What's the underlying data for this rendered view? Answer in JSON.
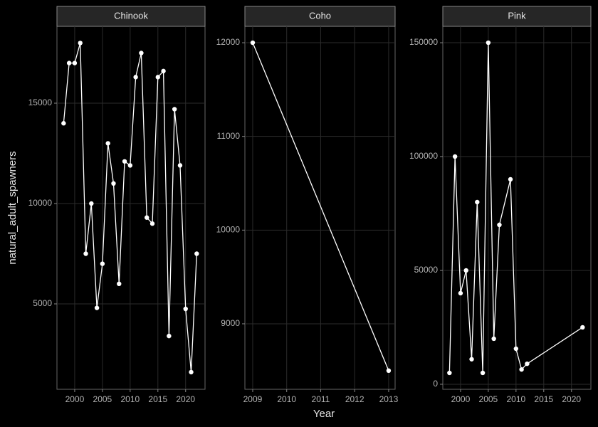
{
  "x_label": "Year",
  "y_label": "natural_adult_spawners",
  "chart_data": [
    {
      "type": "line",
      "title": "Chinook",
      "color": "#ffffff",
      "x": [
        1998,
        1999,
        2000,
        2001,
        2002,
        2003,
        2004,
        2005,
        2006,
        2007,
        2008,
        2009,
        2010,
        2011,
        2012,
        2013,
        2014,
        2015,
        2016,
        2017,
        2018,
        2019,
        2020,
        2021,
        2022
      ],
      "values": [
        14000,
        17000,
        17000,
        18000,
        7500,
        10000,
        4800,
        7000,
        13000,
        11000,
        6000,
        12100,
        11900,
        16300,
        17500,
        9300,
        9000,
        16300,
        16600,
        3400,
        14700,
        11900,
        4750,
        1600,
        7500
      ],
      "xlim": [
        1996.8,
        2023.5
      ],
      "xticks": [
        2000,
        2005,
        2010,
        2015,
        2020
      ],
      "ylim": [
        745,
        18830
      ],
      "yticks": [
        5000,
        10000,
        15000
      ],
      "grid": true
    },
    {
      "type": "line",
      "title": "Coho",
      "color": "#ffffff",
      "x": [
        2009,
        2013
      ],
      "values": [
        12000,
        8500
      ],
      "xlim": [
        2008.77,
        2013.19
      ],
      "xticks": [
        2009,
        2010,
        2011,
        2012,
        2013
      ],
      "ylim": [
        8301,
        12175
      ],
      "yticks": [
        9000,
        10000,
        11000,
        12000
      ],
      "grid": true
    },
    {
      "type": "line",
      "title": "Pink",
      "color": "#ffffff",
      "x": [
        1998,
        1999,
        2000,
        2001,
        2002,
        2003,
        2004,
        2005,
        2006,
        2007,
        2009,
        2010,
        2011,
        2012,
        2022
      ],
      "values": [
        5000,
        100000,
        40000,
        50000,
        11000,
        80000,
        5000,
        150000,
        20000,
        70000,
        90000,
        15600,
        6500,
        9000,
        25000
      ],
      "xlim": [
        1996.8,
        2023.5
      ],
      "xticks": [
        2000,
        2005,
        2010,
        2015,
        2020
      ],
      "ylim": [
        -2200,
        157200
      ],
      "yticks": [
        0,
        50000,
        100000,
        150000
      ],
      "grid": true
    }
  ]
}
